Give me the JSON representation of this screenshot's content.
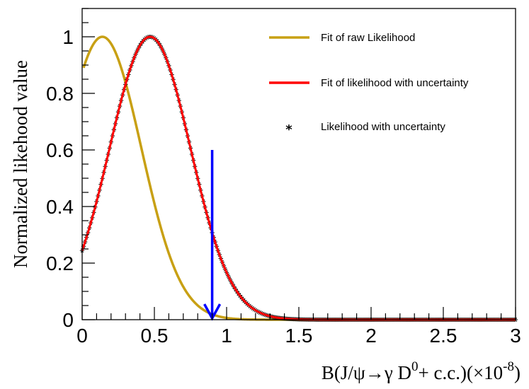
{
  "chart_data": {
    "type": "line",
    "xlabel": "B(J/ψ→γ D⁰+ c.c.)(×10⁻⁸)",
    "xlabel_parts": {
      "main": "B(J/ψ→γ D",
      "sup0": "0",
      "mid": "+ c.c.)(×10",
      "sup1": "-8",
      "end": ")"
    },
    "ylabel": "Normalized likehood value",
    "xlim": [
      0,
      3
    ],
    "ylim": [
      0,
      1.1
    ],
    "x_ticks": [
      0,
      0.5,
      1,
      1.5,
      2,
      2.5,
      3
    ],
    "x_tick_labels": [
      "0",
      "0.5",
      "1",
      "1.5",
      "2",
      "2.5",
      "3"
    ],
    "y_ticks": [
      0,
      0.2,
      0.4,
      0.6,
      0.8,
      1
    ],
    "y_tick_labels": [
      "0",
      "0.2",
      "0.4",
      "0.6",
      "0.8",
      "1"
    ],
    "series": [
      {
        "name": "Fit of raw Likelihood",
        "kind": "gaussian",
        "color": "#c8a014",
        "mean": 0.14,
        "sigma": 0.27,
        "x_range": [
          0.01,
          3
        ]
      },
      {
        "name": "Fit of likelihood with uncertainty",
        "kind": "gaussian",
        "color": "#ff0000",
        "mean": 0.47,
        "sigma": 0.28,
        "x_range": [
          0,
          3
        ]
      },
      {
        "name": "Likelihood with uncertainty",
        "kind": "gaussian-markers",
        "color": "#000000",
        "mean": 0.47,
        "sigma": 0.28,
        "x_range": [
          0,
          3
        ],
        "step": 0.01
      }
    ],
    "annotation": {
      "type": "upper-limit-arrow",
      "x": 0.9,
      "y_from": 0.6,
      "y_to": 0,
      "color": "#0000ff"
    }
  }
}
